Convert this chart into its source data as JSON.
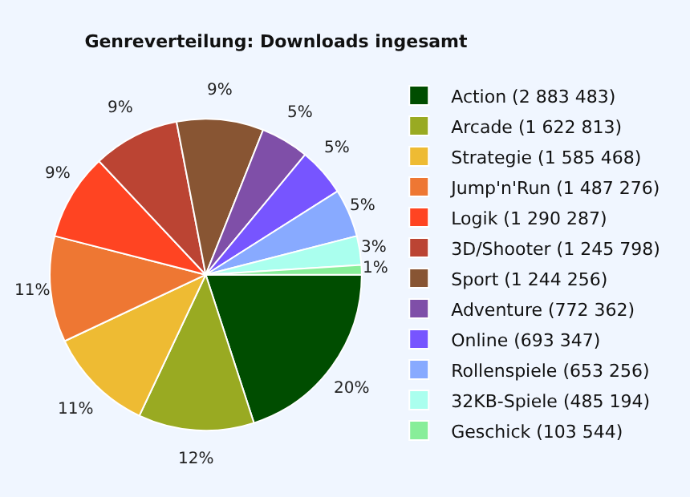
{
  "chart_data": {
    "type": "pie",
    "title": "Genreverteilung: Downloads ingesamt",
    "categories": [
      "Action (2 883 483)",
      "Arcade (1 622 813)",
      "Strategie (1 585 468)",
      "Jump'n'Run (1 487 276)",
      "Logik (1 290 287)",
      "3D/Shooter (1 245 798)",
      "Sport (1 244 256)",
      "Adventure (772 362)",
      "Online (693 347)",
      "Rollenspiele (653 256)",
      "32KB-Spiele (485 194)",
      "Geschick (103 544)"
    ],
    "values": [
      20,
      12,
      11,
      11,
      9,
      9,
      9,
      5,
      5,
      5,
      3,
      1
    ],
    "colors": [
      "#004d00",
      "#99aa22",
      "#eebb33",
      "#ee7733",
      "#ff4422",
      "#bb4433",
      "#885533",
      "#7f4fa8",
      "#7755ff",
      "#88aaff",
      "#aaffee",
      "#88ee99"
    ],
    "value_labels": [
      "20%",
      "12%",
      "11%",
      "11%",
      "9%",
      "9%",
      "9%",
      "5%",
      "5%",
      "5%",
      "3%",
      "1%"
    ],
    "legend": "right"
  }
}
